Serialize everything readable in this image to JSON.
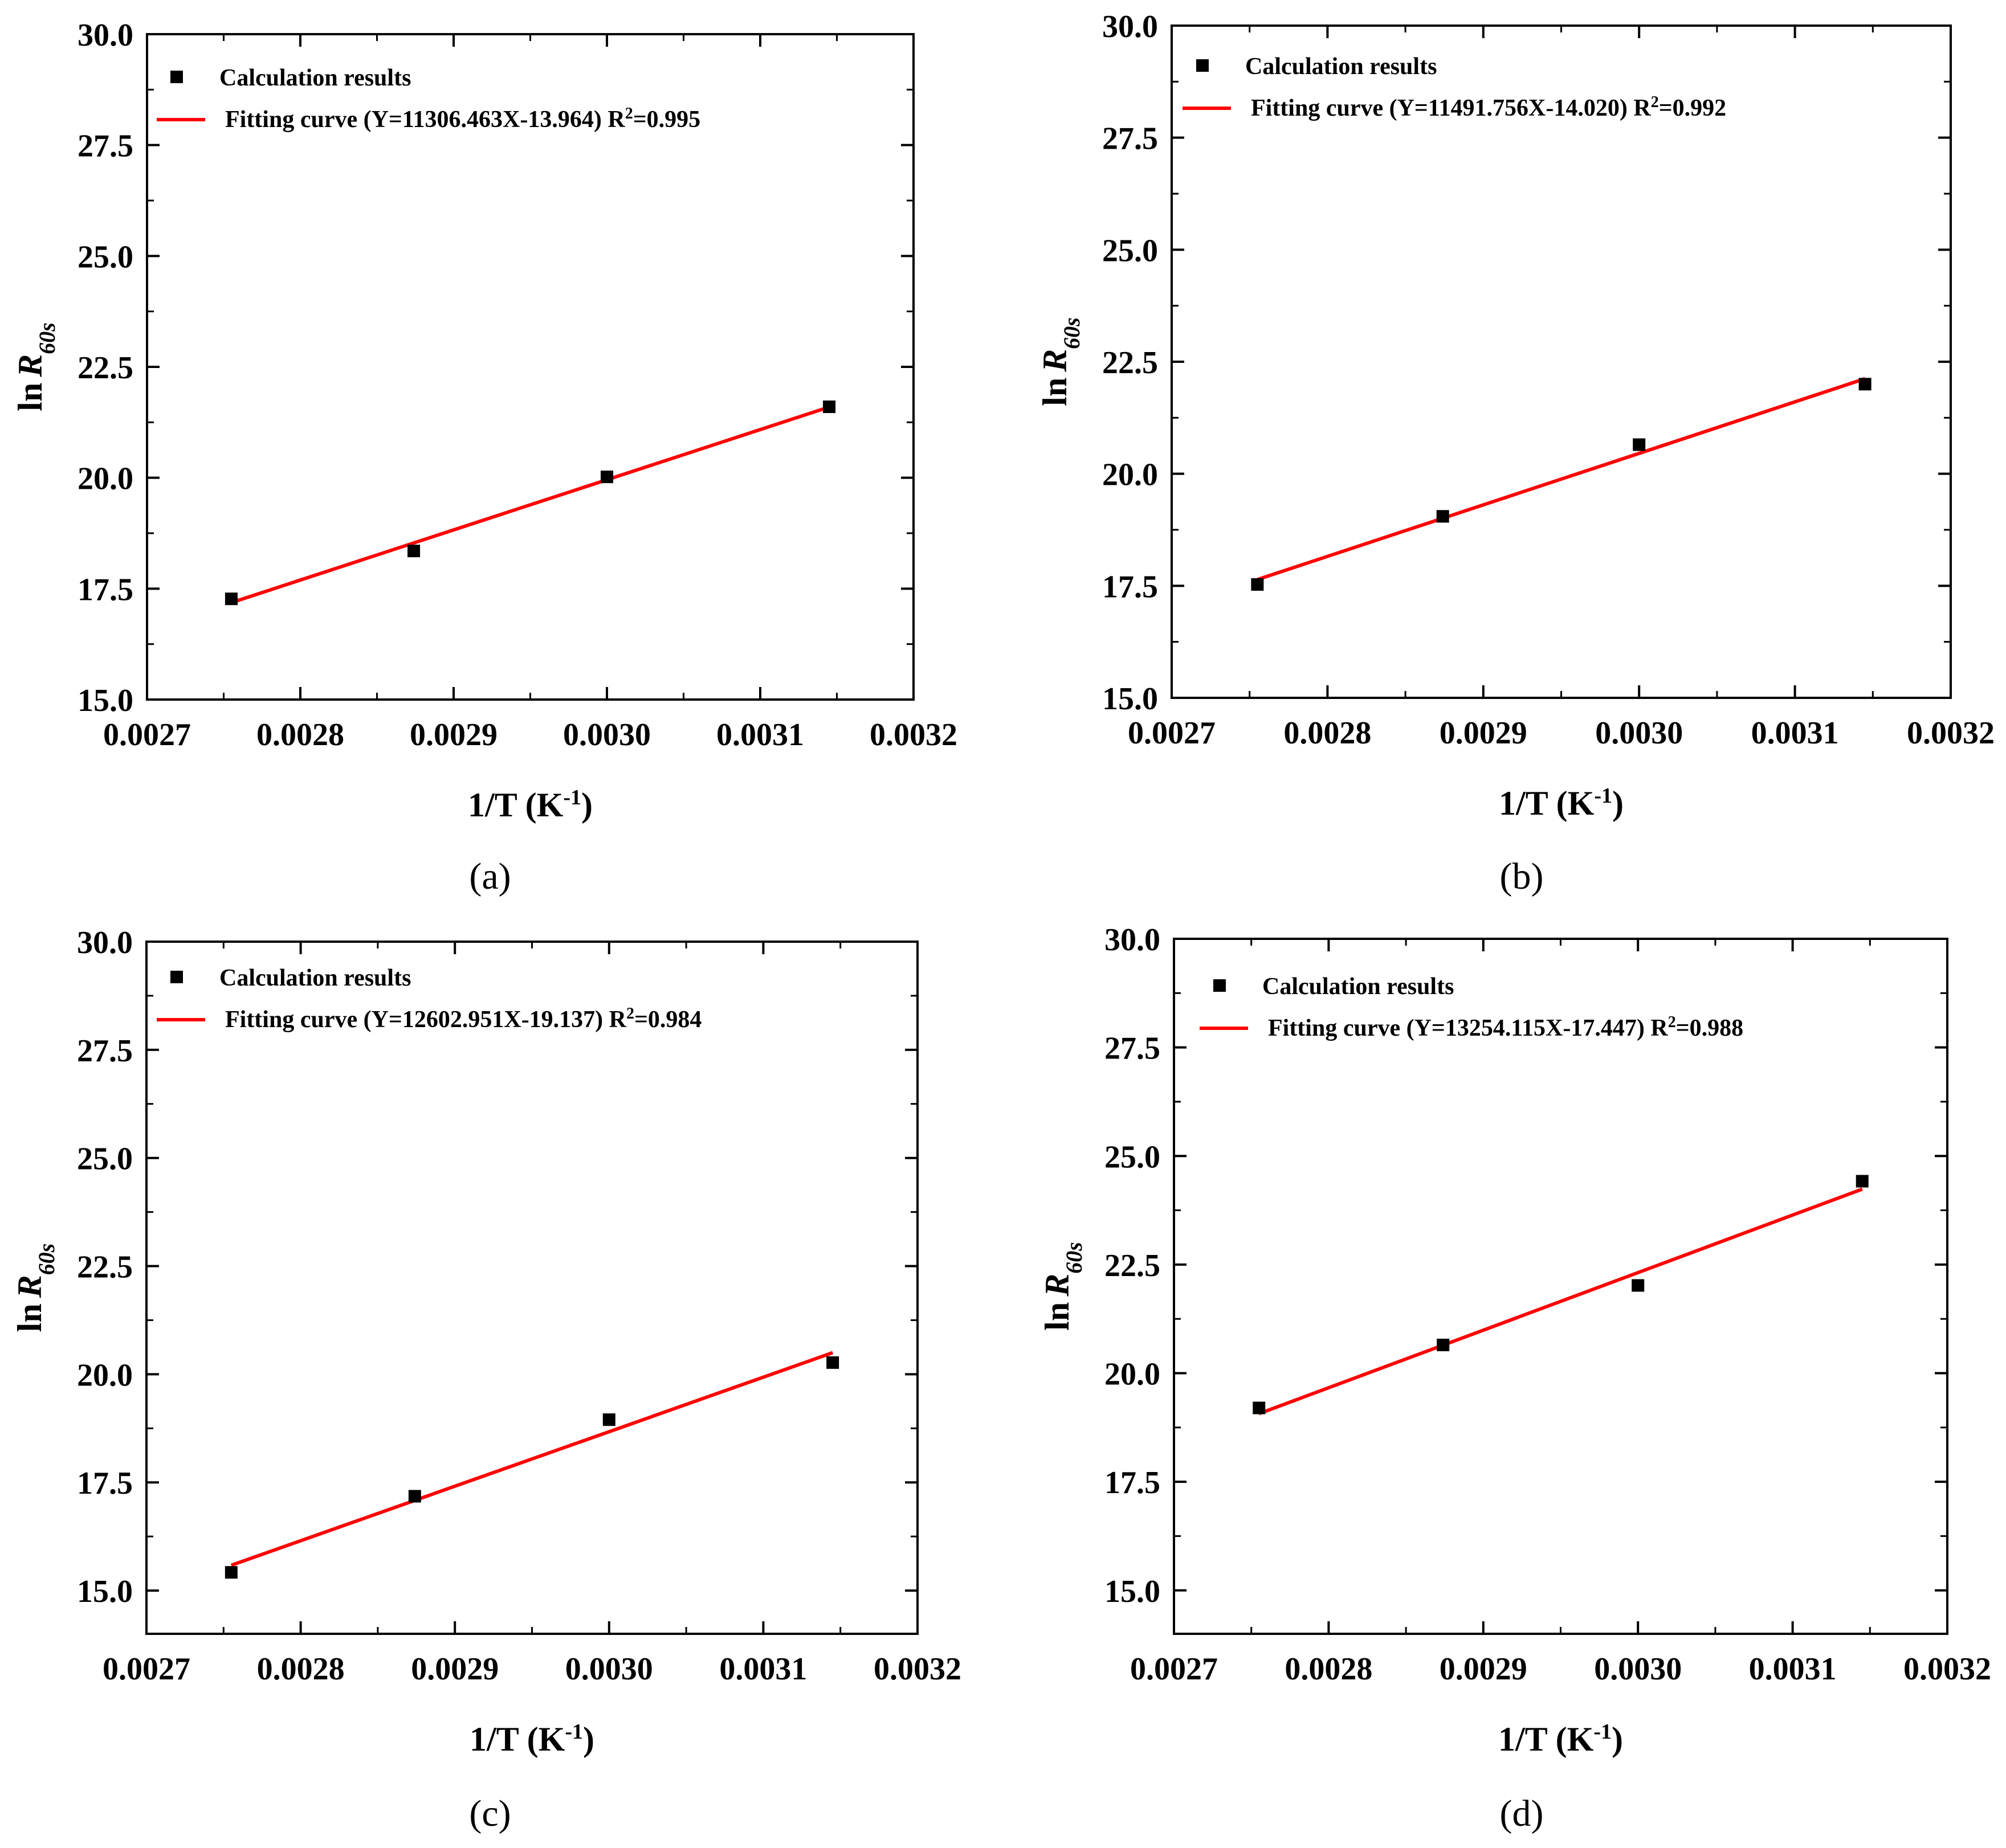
{
  "chart_data": [
    {
      "type": "scatter",
      "panel_label": "(a)",
      "xlabel": "1/T (K",
      "xlabel_sup": "-1",
      "xlabel_close": ")",
      "ylabel_prefix": "ln",
      "ylabel_main": "R",
      "ylabel_sub": "60s",
      "xlim": [
        0.0027,
        0.0032
      ],
      "ylim": [
        15.0,
        30.0
      ],
      "xticks": [
        "0.0027",
        "0.0028",
        "0.0029",
        "0.0030",
        "0.0031",
        "0.0032"
      ],
      "yticks": [
        "15.0",
        "17.5",
        "20.0",
        "22.5",
        "25.0",
        "27.5",
        "30.0"
      ],
      "points": {
        "name": "Calculation results",
        "x": [
          0.002755,
          0.002874,
          0.003,
          0.003145
        ],
        "y": [
          17.27,
          18.35,
          20.02,
          21.6
        ]
      },
      "fit": {
        "name_prefix": "Fitting curve (Y=11306.463X-13.964) R",
        "name_sup": "2",
        "name_suffix": "=0.995",
        "slope": 11306.463,
        "intercept": -13.964,
        "x": [
          0.002755,
          0.003145
        ],
        "color": "#ff0000"
      }
    },
    {
      "type": "scatter",
      "panel_label": "(b)",
      "xlabel": "1/T (K",
      "xlabel_sup": "-1",
      "xlabel_close": ")",
      "ylabel_prefix": "ln",
      "ylabel_main": "R",
      "ylabel_sub": "60s",
      "xlim": [
        0.0027,
        0.0032
      ],
      "ylim": [
        15.0,
        30.0
      ],
      "xticks": [
        "0.0027",
        "0.0028",
        "0.0029",
        "0.0030",
        "0.0031",
        "0.0032"
      ],
      "yticks": [
        "15.0",
        "17.5",
        "20.0",
        "22.5",
        "25.0",
        "27.5",
        "30.0"
      ],
      "points": {
        "name": "Calculation results",
        "x": [
          0.002755,
          0.002874,
          0.003,
          0.003145
        ],
        "y": [
          17.53,
          19.05,
          20.65,
          22.0
        ]
      },
      "fit": {
        "name_prefix": "Fitting curve (Y=11491.756X-14.020) R",
        "name_sup": "2",
        "name_suffix": "=0.992",
        "slope": 11491.756,
        "intercept": -14.02,
        "x": [
          0.002755,
          0.003145
        ],
        "color": "#ff0000"
      }
    },
    {
      "type": "scatter",
      "panel_label": "(c)",
      "xlabel": "1/T (K",
      "xlabel_sup": "-1",
      "xlabel_close": ")",
      "ylabel_prefix": "ln",
      "ylabel_main": "R",
      "ylabel_sub": "60s",
      "xlim": [
        0.0027,
        0.0032
      ],
      "ylim": [
        14.0,
        30.0
      ],
      "xticks": [
        "0.0027",
        "0.0028",
        "0.0029",
        "0.0030",
        "0.0031",
        "0.0032"
      ],
      "yticks": [
        "15.0",
        "17.5",
        "20.0",
        "22.5",
        "25.0",
        "27.5",
        "30.0"
      ],
      "points": {
        "name": "Calculation results",
        "x": [
          0.002755,
          0.002874,
          0.003,
          0.003145
        ],
        "y": [
          15.42,
          17.18,
          18.95,
          20.27
        ]
      },
      "fit": {
        "name_prefix": "Fitting curve (Y=12602.951X-19.137) R",
        "name_sup": "2",
        "name_suffix": "=0.984",
        "slope": 12602.951,
        "intercept": -19.137,
        "x": [
          0.002755,
          0.003145
        ],
        "color": "#ff0000"
      }
    },
    {
      "type": "scatter",
      "panel_label": "(d)",
      "xlabel": "1/T (K",
      "xlabel_sup": "-1",
      "xlabel_close": ")",
      "ylabel_prefix": "ln",
      "ylabel_main": "R",
      "ylabel_sub": "60s",
      "xlim": [
        0.0027,
        0.0032
      ],
      "ylim": [
        14.0,
        30.0
      ],
      "xticks": [
        "0.0027",
        "0.0028",
        "0.0029",
        "0.0030",
        "0.0031",
        "0.0032"
      ],
      "yticks": [
        "15.0",
        "17.5",
        "20.0",
        "22.5",
        "25.0",
        "27.5",
        "30.0"
      ],
      "points": {
        "name": "Calculation results",
        "x": [
          0.002755,
          0.002874,
          0.003,
          0.003145
        ],
        "y": [
          19.2,
          20.65,
          22.02,
          24.42
        ]
      },
      "fit": {
        "name_prefix": "Fitting curve (Y=13254.115X-17.447) R",
        "name_sup": "2",
        "name_suffix": "=0.988",
        "slope": 13254.115,
        "intercept": -17.447,
        "x": [
          0.002755,
          0.003145
        ],
        "color": "#ff0000"
      }
    }
  ]
}
